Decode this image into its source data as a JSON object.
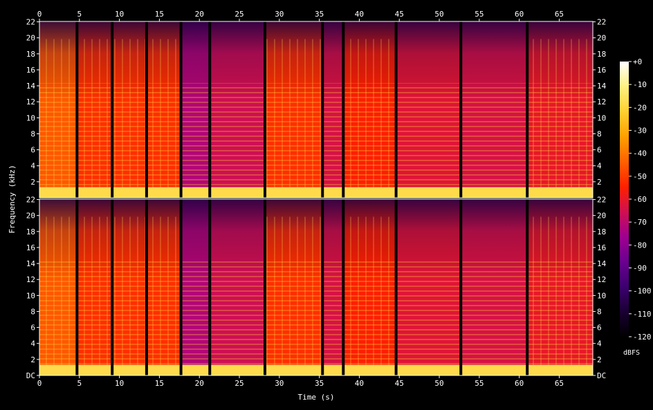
{
  "chart_data": {
    "type": "heatmap",
    "title": "",
    "xlabel": "Time (s)",
    "ylabel": "Frequency (kHz)",
    "xlim": [
      0,
      69.2
    ],
    "ylim": [
      0,
      22.05
    ],
    "x_ticks": [
      "0",
      "5",
      "10",
      "15",
      "20",
      "25",
      "30",
      "35",
      "40",
      "45",
      "50",
      "55",
      "60",
      "65"
    ],
    "y_tick_labels": [
      "DC",
      "2",
      "4",
      "6",
      "8",
      "10",
      "12",
      "14",
      "16",
      "18",
      "20",
      "22"
    ],
    "channels": 2,
    "colorbar": {
      "label": "dBFS",
      "range": [
        -120,
        0
      ],
      "ticks": [
        "+0",
        "-10",
        "-20",
        "-30",
        "-40",
        "-50",
        "-60",
        "-70",
        "-80",
        "-90",
        "-100",
        "-110",
        "-120"
      ],
      "colors": [
        "#000000",
        "#1a0033",
        "#3d0070",
        "#6a0090",
        "#a00090",
        "#d01050",
        "#ff2000",
        "#ff6000",
        "#ffa000",
        "#ffd030",
        "#fff080",
        "#ffffff"
      ]
    },
    "silence_gaps_s": [
      4.7,
      9.1,
      13.4,
      17.7,
      21.3,
      28.2,
      35.4,
      38.0,
      44.6,
      52.7,
      61.0
    ],
    "segments": [
      {
        "start": 0.0,
        "end": 4.7,
        "level_dB": -45
      },
      {
        "start": 4.7,
        "end": 9.1,
        "level_dB": -52
      },
      {
        "start": 9.1,
        "end": 13.4,
        "level_dB": -52
      },
      {
        "start": 13.4,
        "end": 17.7,
        "level_dB": -52
      },
      {
        "start": 17.7,
        "end": 21.3,
        "level_dB": -72
      },
      {
        "start": 21.3,
        "end": 28.2,
        "level_dB": -66
      },
      {
        "start": 28.2,
        "end": 35.4,
        "level_dB": -52
      },
      {
        "start": 35.4,
        "end": 38.0,
        "level_dB": -64
      },
      {
        "start": 38.0,
        "end": 44.6,
        "level_dB": -55
      },
      {
        "start": 44.6,
        "end": 52.7,
        "level_dB": -62
      },
      {
        "start": 52.7,
        "end": 61.0,
        "level_dB": -64
      },
      {
        "start": 61.0,
        "end": 69.2,
        "level_dB": -60
      }
    ]
  }
}
